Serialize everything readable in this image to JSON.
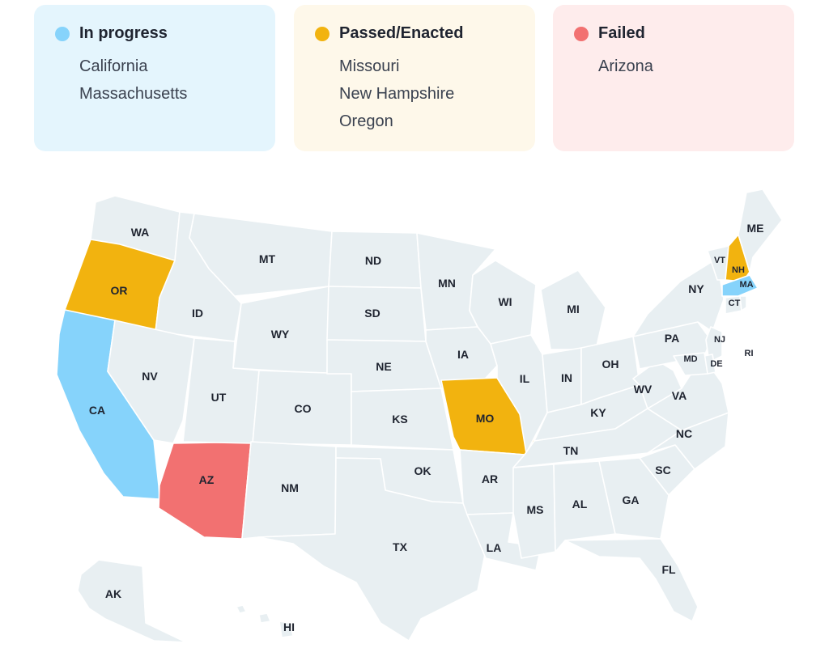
{
  "legend": {
    "in_progress": {
      "title": "In progress",
      "color": "#86d3fb",
      "bg": "#e4f5fd",
      "states": [
        "California",
        "Massachusetts"
      ]
    },
    "passed": {
      "title": "Passed/Enacted",
      "color": "#f2b30f",
      "bg": "#fef8ea",
      "states": [
        "Missouri",
        "New Hampshire",
        "Oregon"
      ]
    },
    "failed": {
      "title": "Failed",
      "color": "#f27171",
      "bg": "#feecec",
      "states": [
        "Arizona"
      ]
    }
  },
  "map": {
    "default_fill": "#e8eff2",
    "states": [
      {
        "abbr": "WA",
        "status": "none"
      },
      {
        "abbr": "OR",
        "status": "passed"
      },
      {
        "abbr": "CA",
        "status": "in_progress"
      },
      {
        "abbr": "ID",
        "status": "none"
      },
      {
        "abbr": "NV",
        "status": "none"
      },
      {
        "abbr": "AZ",
        "status": "failed"
      },
      {
        "abbr": "UT",
        "status": "none"
      },
      {
        "abbr": "MT",
        "status": "none"
      },
      {
        "abbr": "WY",
        "status": "none"
      },
      {
        "abbr": "CO",
        "status": "none"
      },
      {
        "abbr": "NM",
        "status": "none"
      },
      {
        "abbr": "ND",
        "status": "none"
      },
      {
        "abbr": "SD",
        "status": "none"
      },
      {
        "abbr": "NE",
        "status": "none"
      },
      {
        "abbr": "KS",
        "status": "none"
      },
      {
        "abbr": "OK",
        "status": "none"
      },
      {
        "abbr": "TX",
        "status": "none"
      },
      {
        "abbr": "MN",
        "status": "none"
      },
      {
        "abbr": "IA",
        "status": "none"
      },
      {
        "abbr": "MO",
        "status": "passed"
      },
      {
        "abbr": "AR",
        "status": "none"
      },
      {
        "abbr": "LA",
        "status": "none"
      },
      {
        "abbr": "WI",
        "status": "none"
      },
      {
        "abbr": "IL",
        "status": "none"
      },
      {
        "abbr": "MI",
        "status": "none"
      },
      {
        "abbr": "IN",
        "status": "none"
      },
      {
        "abbr": "OH",
        "status": "none"
      },
      {
        "abbr": "KY",
        "status": "none"
      },
      {
        "abbr": "TN",
        "status": "none"
      },
      {
        "abbr": "MS",
        "status": "none"
      },
      {
        "abbr": "AL",
        "status": "none"
      },
      {
        "abbr": "GA",
        "status": "none"
      },
      {
        "abbr": "FL",
        "status": "none"
      },
      {
        "abbr": "SC",
        "status": "none"
      },
      {
        "abbr": "NC",
        "status": "none"
      },
      {
        "abbr": "VA",
        "status": "none"
      },
      {
        "abbr": "WV",
        "status": "none"
      },
      {
        "abbr": "PA",
        "status": "none"
      },
      {
        "abbr": "NY",
        "status": "none"
      },
      {
        "abbr": "VT",
        "status": "none"
      },
      {
        "abbr": "NH",
        "status": "passed"
      },
      {
        "abbr": "ME",
        "status": "none"
      },
      {
        "abbr": "MA",
        "status": "in_progress"
      },
      {
        "abbr": "CT",
        "status": "none"
      },
      {
        "abbr": "RI",
        "status": "none"
      },
      {
        "abbr": "NJ",
        "status": "none"
      },
      {
        "abbr": "DE",
        "status": "none"
      },
      {
        "abbr": "MD",
        "status": "none"
      },
      {
        "abbr": "AK",
        "status": "none"
      },
      {
        "abbr": "HI",
        "status": "none"
      }
    ]
  }
}
